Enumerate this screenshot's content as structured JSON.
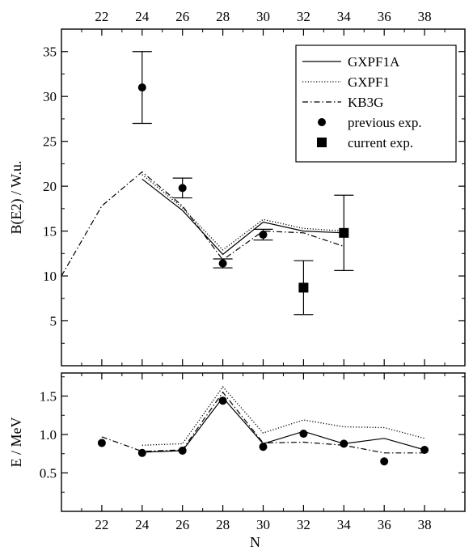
{
  "chart_data": [
    {
      "type": "line",
      "ylabel": "B(E2) / W.u.",
      "xlabel": "",
      "xlim": [
        20,
        40
      ],
      "ylim": [
        0,
        37.5
      ],
      "x_ticks": [
        22,
        24,
        26,
        28,
        30,
        32,
        34,
        36,
        38
      ],
      "y_ticks": [
        5,
        10,
        15,
        20,
        25,
        30,
        35
      ],
      "legend_position": "top-right",
      "series": [
        {
          "name": "GXPF1A",
          "style": "solid",
          "color": "#000000",
          "x": [
            24,
            26,
            28,
            30,
            32,
            34
          ],
          "y": [
            20.8,
            17.3,
            12.4,
            16.0,
            15.0,
            14.8
          ]
        },
        {
          "name": "GXPF1",
          "style": "dotted",
          "color": "#000000",
          "x": [
            24,
            26,
            28,
            30,
            32,
            34
          ],
          "y": [
            21.3,
            17.6,
            12.9,
            16.3,
            15.3,
            15.0
          ]
        },
        {
          "name": "KB3G",
          "style": "dashdot",
          "color": "#000000",
          "x": [
            20,
            22,
            24,
            26,
            28,
            30,
            32,
            34
          ],
          "y": [
            10.0,
            17.8,
            21.6,
            17.8,
            11.8,
            15.0,
            14.8,
            13.3
          ]
        },
        {
          "name": "previous exp.",
          "style": "circle",
          "points": [
            {
              "x": 24,
              "y": 31.0,
              "err": 4.0
            },
            {
              "x": 26,
              "y": 19.8,
              "err": 1.1
            },
            {
              "x": 28,
              "y": 11.4,
              "err": 0.5
            },
            {
              "x": 30,
              "y": 14.6,
              "err": 0.6
            }
          ]
        },
        {
          "name": "current exp.",
          "style": "square",
          "points": [
            {
              "x": 32,
              "y": 8.7,
              "err": 3.0
            },
            {
              "x": 34,
              "y": 14.8,
              "err": 4.2
            }
          ]
        }
      ]
    },
    {
      "type": "line",
      "ylabel": "E / MeV",
      "xlabel": "N",
      "xlim": [
        20,
        40
      ],
      "ylim": [
        0,
        1.8
      ],
      "x_ticks": [
        22,
        24,
        26,
        28,
        30,
        32,
        34,
        36,
        38
      ],
      "y_ticks": [
        0.5,
        1.0,
        1.5
      ],
      "series": [
        {
          "name": "GXPF1A",
          "style": "solid",
          "x": [
            24,
            26,
            28,
            30,
            32,
            34,
            36,
            38
          ],
          "y": [
            0.77,
            0.79,
            1.48,
            0.88,
            1.04,
            0.88,
            0.95,
            0.8
          ]
        },
        {
          "name": "GXPF1",
          "style": "dotted",
          "x": [
            24,
            26,
            28,
            30,
            32,
            34,
            36,
            38
          ],
          "y": [
            0.86,
            0.88,
            1.62,
            1.02,
            1.19,
            1.1,
            1.09,
            0.95
          ]
        },
        {
          "name": "KB3G",
          "style": "dashdot",
          "x": [
            22,
            24,
            26,
            28,
            30,
            32,
            34,
            36,
            38
          ],
          "y": [
            0.97,
            0.78,
            0.8,
            1.55,
            0.89,
            0.9,
            0.86,
            0.76,
            0.76
          ]
        },
        {
          "name": "previous exp.",
          "style": "circle",
          "points": [
            {
              "x": 22,
              "y": 0.89
            },
            {
              "x": 24,
              "y": 0.76
            },
            {
              "x": 26,
              "y": 0.79
            },
            {
              "x": 28,
              "y": 1.44
            },
            {
              "x": 30,
              "y": 0.84
            },
            {
              "x": 32,
              "y": 1.01
            },
            {
              "x": 34,
              "y": 0.88
            },
            {
              "x": 36,
              "y": 0.65
            },
            {
              "x": 38,
              "y": 0.8
            }
          ]
        }
      ]
    }
  ]
}
